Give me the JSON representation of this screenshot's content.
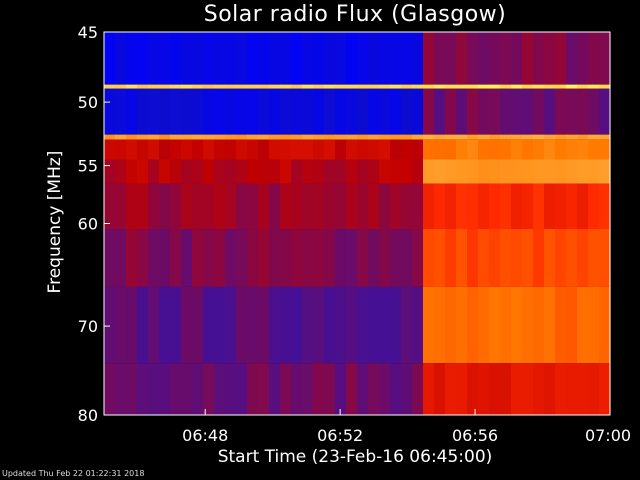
{
  "chart_data": {
    "type": "heatmap",
    "title": "Solar radio Flux (Glasgow)",
    "xlabel": "Start Time (23-Feb-16 06:45:00)",
    "ylabel": "Frequency [MHz]",
    "x_ticks": [
      "06:48",
      "06:52",
      "06:56",
      "07:00"
    ],
    "x_tick_minutes_after_start": [
      3,
      7,
      11,
      15
    ],
    "xlim_minutes_after_start": [
      0,
      15
    ],
    "y_ticks": [
      45,
      50,
      55,
      60,
      70,
      80
    ],
    "ylim_mhz": [
      45,
      80
    ],
    "y_scale": "log",
    "grid": false,
    "colormap": [
      "#0000ff",
      "#1010c0",
      "#4a1090",
      "#c00000",
      "#ff2a00",
      "#ff7a00",
      "#ffb040",
      "#ffff60"
    ],
    "intensity_step_time_min": 9.4,
    "bands_mhz": [
      {
        "from": 45,
        "to": 48.7,
        "before": 0.05,
        "after": 0.35
      },
      {
        "from": 48.7,
        "to": 49.0,
        "before": 0.92,
        "after": 0.95
      },
      {
        "from": 49.0,
        "to": 52.5,
        "before": 0.08,
        "after": 0.33
      },
      {
        "from": 52.5,
        "to": 52.9,
        "before": 0.8,
        "after": 0.82
      },
      {
        "from": 52.9,
        "to": 54.5,
        "before": 0.45,
        "after": 0.72
      },
      {
        "from": 54.5,
        "to": 56.5,
        "before": 0.42,
        "after": 0.78
      },
      {
        "from": 56.5,
        "to": 60.5,
        "before": 0.38,
        "after": 0.56
      },
      {
        "from": 60.5,
        "to": 66.0,
        "before": 0.35,
        "after": 0.62
      },
      {
        "from": 66.0,
        "to": 74.0,
        "before": 0.3,
        "after": 0.68
      },
      {
        "from": 74.0,
        "to": 80.0,
        "before": 0.33,
        "after": 0.5
      }
    ]
  },
  "footer": {
    "updated_text": "Updated Thu Feb 22 01:22:31 2018"
  }
}
